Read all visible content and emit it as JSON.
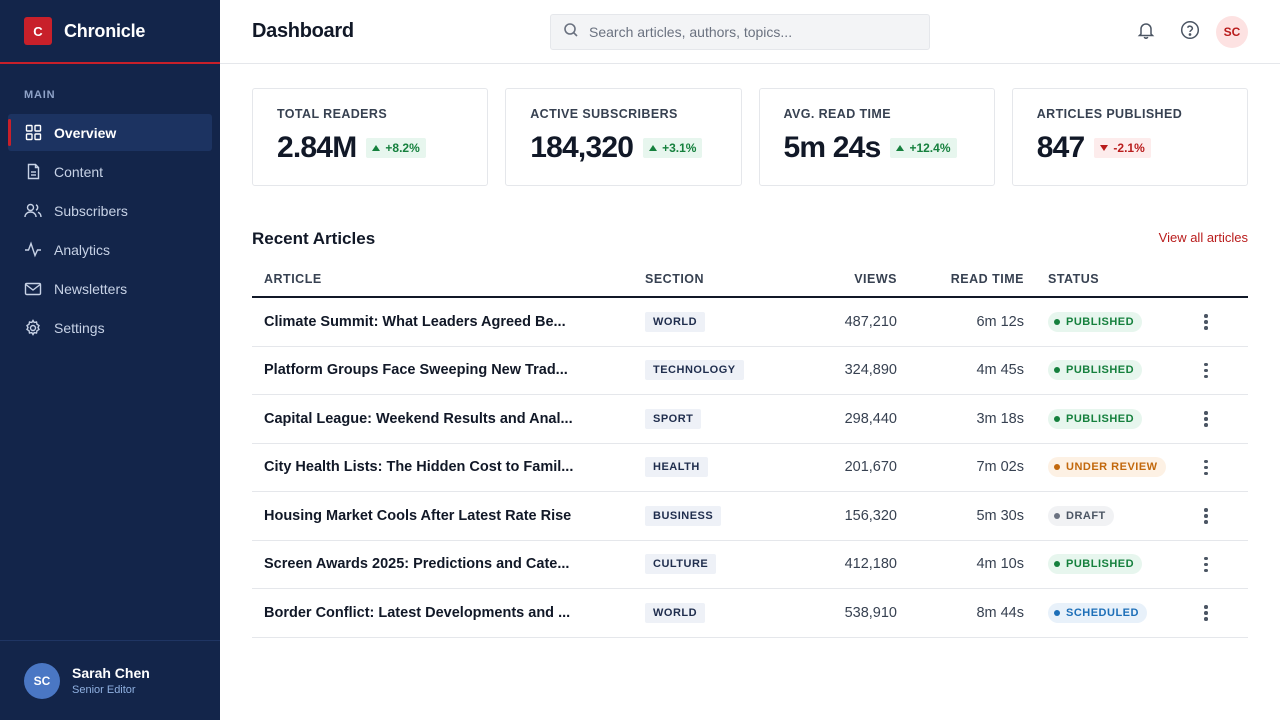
{
  "brand": {
    "logo": "C",
    "name": "Chronicle"
  },
  "nav": {
    "section": "MAIN",
    "items": [
      {
        "label": "Overview",
        "icon": "grid-icon",
        "active": true
      },
      {
        "label": "Content",
        "icon": "document-icon",
        "active": false
      },
      {
        "label": "Subscribers",
        "icon": "users-icon",
        "active": false
      },
      {
        "label": "Analytics",
        "icon": "activity-icon",
        "active": false
      },
      {
        "label": "Newsletters",
        "icon": "mail-icon",
        "active": false
      },
      {
        "label": "Settings",
        "icon": "gear-icon",
        "active": false
      }
    ]
  },
  "profile": {
    "initials": "SC",
    "name": "Sarah Chen",
    "role": "Senior Editor"
  },
  "header": {
    "title": "Dashboard",
    "search_placeholder": "Search articles, authors, topics...",
    "avatar_initials": "SC"
  },
  "stats": [
    {
      "label": "TOTAL READERS",
      "value": "2.84M",
      "delta": "+8.2%",
      "direction": "up"
    },
    {
      "label": "ACTIVE SUBSCRIBERS",
      "value": "184,320",
      "delta": "+3.1%",
      "direction": "up"
    },
    {
      "label": "AVG. READ TIME",
      "value": "5m 24s",
      "delta": "+12.4%",
      "direction": "up"
    },
    {
      "label": "ARTICLES PUBLISHED",
      "value": "847",
      "delta": "-2.1%",
      "direction": "down"
    }
  ],
  "recent": {
    "title": "Recent Articles",
    "view_all": "View all articles",
    "columns": {
      "article": "ARTICLE",
      "section": "SECTION",
      "views": "VIEWS",
      "read_time": "READ TIME",
      "status": "STATUS"
    },
    "rows": [
      {
        "article": "Climate Summit: What Leaders Agreed Be...",
        "section": "WORLD",
        "views": "487,210",
        "read_time": "6m 12s",
        "status": "PUBLISHED",
        "status_kind": "published"
      },
      {
        "article": "Platform Groups Face Sweeping New Trad...",
        "section": "TECHNOLOGY",
        "views": "324,890",
        "read_time": "4m 45s",
        "status": "PUBLISHED",
        "status_kind": "published"
      },
      {
        "article": "Capital League: Weekend Results and Anal...",
        "section": "SPORT",
        "views": "298,440",
        "read_time": "3m 18s",
        "status": "PUBLISHED",
        "status_kind": "published"
      },
      {
        "article": "City Health Lists: The Hidden Cost to Famil...",
        "section": "HEALTH",
        "views": "201,670",
        "read_time": "7m 02s",
        "status": "UNDER REVIEW",
        "status_kind": "review"
      },
      {
        "article": "Housing Market Cools After Latest Rate Rise",
        "section": "BUSINESS",
        "views": "156,320",
        "read_time": "5m 30s",
        "status": "DRAFT",
        "status_kind": "draft"
      },
      {
        "article": "Screen Awards 2025: Predictions and Cate...",
        "section": "CULTURE",
        "views": "412,180",
        "read_time": "4m 10s",
        "status": "PUBLISHED",
        "status_kind": "published"
      },
      {
        "article": "Border Conflict: Latest Developments and ...",
        "section": "WORLD",
        "views": "538,910",
        "read_time": "8m 44s",
        "status": "SCHEDULED",
        "status_kind": "scheduled"
      }
    ]
  },
  "colors": {
    "sidebar": "#13254a",
    "accent": "#c8202a",
    "published": "#15803d",
    "review": "#c2680c",
    "draft": "#6b7280",
    "scheduled": "#1d6fb8"
  }
}
